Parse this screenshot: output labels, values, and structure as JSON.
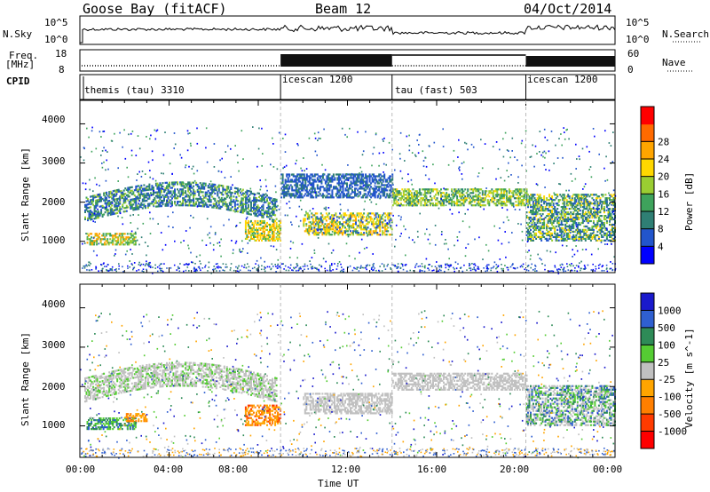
{
  "header": {
    "station": "Goose Bay (fitACF)",
    "beam": "Beam 12",
    "date": "04/Oct/2014"
  },
  "sky_panel": {
    "left_label": "N.Sky",
    "right_label": "N.Search",
    "left_ticks": [
      "10^5",
      "10^0"
    ],
    "right_ticks": [
      "10^5",
      "10^0"
    ]
  },
  "freq_panel": {
    "left_label_1": "Freq.",
    "left_label_2": "[MHz]",
    "right_label": "Nave",
    "left_ticks": [
      "18",
      "8"
    ],
    "right_ticks": [
      "60",
      "0"
    ]
  },
  "cpid": {
    "label": "CPID",
    "segments": [
      {
        "name": "themis (tau) 3310",
        "start_h": 0,
        "end_h": 9
      },
      {
        "name": "icescan 1200",
        "start_h": 9,
        "end_h": 14
      },
      {
        "name": "tau (fast) 503",
        "start_h": 14,
        "end_h": 20
      },
      {
        "name": "icescan 1200",
        "start_h": 20,
        "end_h": 24
      }
    ]
  },
  "chart_data": [
    {
      "type": "heatmap",
      "panel": "power",
      "ylabel": "Slant Range [km]",
      "xlabel": "",
      "yticks": [
        1000,
        2000,
        3000,
        4000
      ],
      "ylim": [
        200,
        4600
      ],
      "xlim": [
        0,
        24
      ],
      "colorbar_label": "Power [dB]",
      "colorbar_ticks": [
        "4",
        "8",
        "12",
        "16",
        "20",
        "24",
        "28"
      ],
      "colorbar_colors": [
        "#0000ff",
        "#2255cc",
        "#2f7f74",
        "#3ea35c",
        "#9acd32",
        "#ffd700",
        "#ffa500",
        "#ff6a00",
        "#ff0000"
      ],
      "features": [
        {
          "start_h": 0,
          "end_h": 8.8,
          "range_start_km": 1500,
          "range_end_km": 2300,
          "dominant": "12-16"
        },
        {
          "start_h": 7.5,
          "end_h": 9,
          "range_start_km": 1000,
          "range_end_km": 1500,
          "dominant": "16-24"
        },
        {
          "start_h": 10,
          "end_h": 14,
          "range_start_km": 1100,
          "range_end_km": 1700,
          "dominant": "20-24"
        },
        {
          "start_h": 14,
          "end_h": 20,
          "range_start_km": 1900,
          "range_end_km": 2300,
          "dominant": "16-20"
        },
        {
          "start_h": 20,
          "end_h": 24,
          "range_start_km": 1000,
          "range_end_km": 2300,
          "dominant": "12-20"
        }
      ]
    },
    {
      "type": "heatmap",
      "panel": "velocity",
      "ylabel": "Slant Range [km]",
      "xlabel": "Time UT",
      "yticks": [
        1000,
        2000,
        3000,
        4000
      ],
      "ylim": [
        200,
        4600
      ],
      "xlim": [
        0,
        24
      ],
      "xticks": [
        "00:00",
        "04:00",
        "08:00",
        "12:00",
        "16:00",
        "20:00",
        "00:00"
      ],
      "colorbar_label": "Velocity [m s^-1]",
      "colorbar_ticks": [
        "1000",
        "500",
        "100",
        "25",
        "-25",
        "-100",
        "-500",
        "-1000"
      ],
      "colorbar_colors": [
        "#1a1acc",
        "#2f5fd0",
        "#2e8b57",
        "#55cc33",
        "#c0c0c0",
        "#ffa500",
        "#ff7f00",
        "#ff3b00",
        "#ff0000"
      ],
      "features": [
        {
          "start_h": 0,
          "end_h": 8.8,
          "range_start_km": 1600,
          "range_end_km": 2300,
          "dominant": "-25 to 25"
        },
        {
          "start_h": 7.5,
          "end_h": 9,
          "range_start_km": 1000,
          "range_end_km": 1500,
          "dominant": "-100 to -500"
        },
        {
          "start_h": 10,
          "end_h": 14,
          "range_start_km": 1300,
          "range_end_km": 1800,
          "dominant": "-25 to 25"
        },
        {
          "start_h": 14,
          "end_h": 20,
          "range_start_km": 1900,
          "range_end_km": 2300,
          "dominant": "-25 to 25"
        },
        {
          "start_h": 20,
          "end_h": 24,
          "range_start_km": 1000,
          "range_end_km": 2000,
          "dominant": "-25 to 100"
        }
      ]
    }
  ]
}
